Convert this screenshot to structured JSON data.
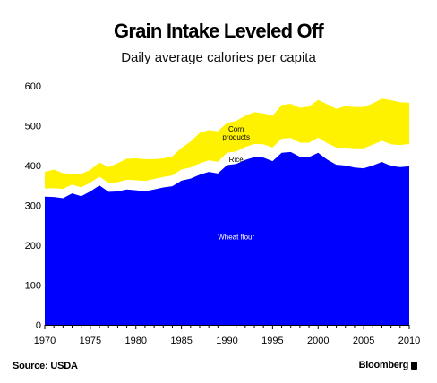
{
  "title": "Grain Intake Leveled Off",
  "subtitle": "Daily average calories per capita",
  "source": "Source: USDA",
  "brand": "Bloomberg",
  "chart_data": {
    "type": "area",
    "stacked": true,
    "x": [
      1970,
      1971,
      1972,
      1973,
      1974,
      1975,
      1976,
      1977,
      1978,
      1979,
      1980,
      1981,
      1982,
      1983,
      1984,
      1985,
      1986,
      1987,
      1988,
      1989,
      1990,
      1991,
      1992,
      1993,
      1994,
      1995,
      1996,
      1997,
      1998,
      1999,
      2000,
      2001,
      2002,
      2003,
      2004,
      2005,
      2006,
      2007,
      2008,
      2009,
      2010
    ],
    "xticks": [
      1970,
      1975,
      1980,
      1985,
      1990,
      1995,
      2000,
      2005,
      2010
    ],
    "ylim": [
      0,
      600
    ],
    "yticks": [
      0,
      100,
      200,
      300,
      400,
      500,
      600
    ],
    "series": [
      {
        "name": "Wheat flour",
        "color": "#0000ff",
        "label_at": [
          1991,
          215
        ],
        "values": [
          322,
          321,
          318,
          330,
          323,
          335,
          350,
          334,
          335,
          340,
          338,
          335,
          340,
          345,
          348,
          362,
          367,
          377,
          384,
          380,
          401,
          404,
          414,
          421,
          420,
          411,
          432,
          434,
          422,
          421,
          432,
          415,
          402,
          400,
          395,
          393,
          400,
          409,
          399,
          396,
          398
        ]
      },
      {
        "name": "Rice",
        "color": "#ffffff",
        "label_at": [
          1991,
          409
        ],
        "values": [
          20,
          22,
          23,
          22,
          22,
          22,
          22,
          22,
          23,
          24,
          25,
          26,
          26,
          26,
          27,
          28,
          28,
          28,
          29,
          29,
          31,
          31,
          32,
          33,
          33,
          34,
          35,
          35,
          35,
          36,
          38,
          41,
          43,
          45,
          48,
          50,
          52,
          53,
          54,
          55,
          56
        ]
      },
      {
        "name": "Corn products",
        "color": "#fff200",
        "label_at": [
          1991,
          485
        ],
        "values": [
          42,
          47,
          40,
          27,
          34,
          32,
          36,
          40,
          48,
          53,
          55,
          55,
          50,
          47,
          48,
          54,
          65,
          77,
          76,
          77,
          75,
          77,
          79,
          80,
          78,
          80,
          85,
          86,
          88,
          91,
          95,
          98,
          97,
          104,
          104,
          104,
          104,
          106,
          111,
          108,
          104
        ]
      }
    ],
    "xlabel": "",
    "ylabel": "",
    "grid": false,
    "legend": "inline labels"
  }
}
